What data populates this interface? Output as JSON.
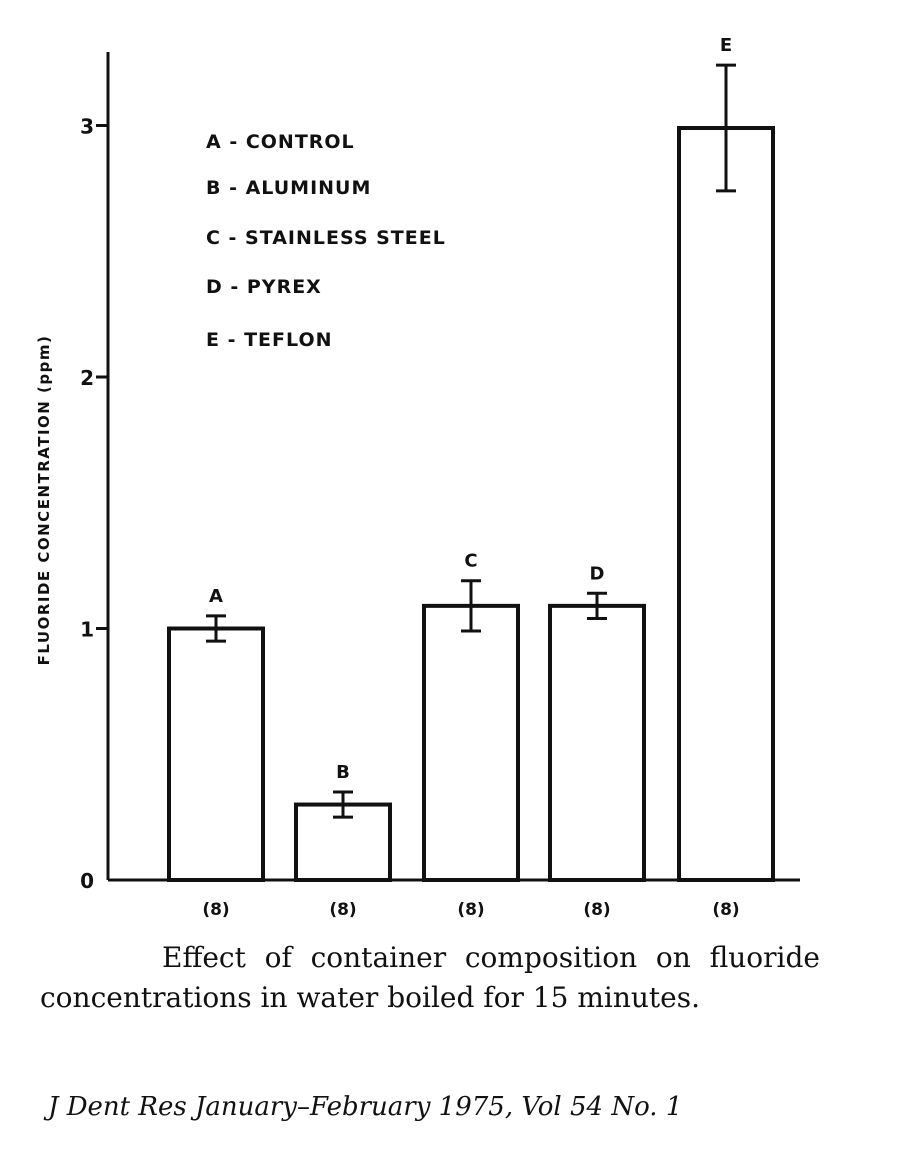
{
  "chart_data": {
    "type": "bar",
    "categories": [
      "A",
      "B",
      "C",
      "D",
      "E"
    ],
    "values": [
      1.0,
      0.3,
      1.09,
      1.09,
      2.99
    ],
    "error": [
      0.05,
      0.05,
      0.1,
      0.05,
      0.25
    ],
    "sample_sizes": [
      "(8)",
      "(8)",
      "(8)",
      "(8)",
      "(8)"
    ],
    "ylabel": "FLUORIDE CONCENTRATION (ppm)",
    "xlabel": "",
    "ylim": [
      0,
      3.3
    ],
    "yticks": [
      "0",
      "1",
      "2",
      "3"
    ],
    "legend": [
      "A - CONTROL",
      "B - ALUMINUM",
      "C - STAINLESS STEEL",
      "D - PYREX",
      "E - TEFLON"
    ],
    "legend_position": "top-left",
    "grid": false,
    "bar_fill": "#ffffff",
    "bar_stroke": "#111111"
  },
  "caption": "Effect of container composition on fluoride concentrations in water boiled for 15 minutes.",
  "citation": "J Dent Res January–February 1975, Vol 54 No. 1"
}
